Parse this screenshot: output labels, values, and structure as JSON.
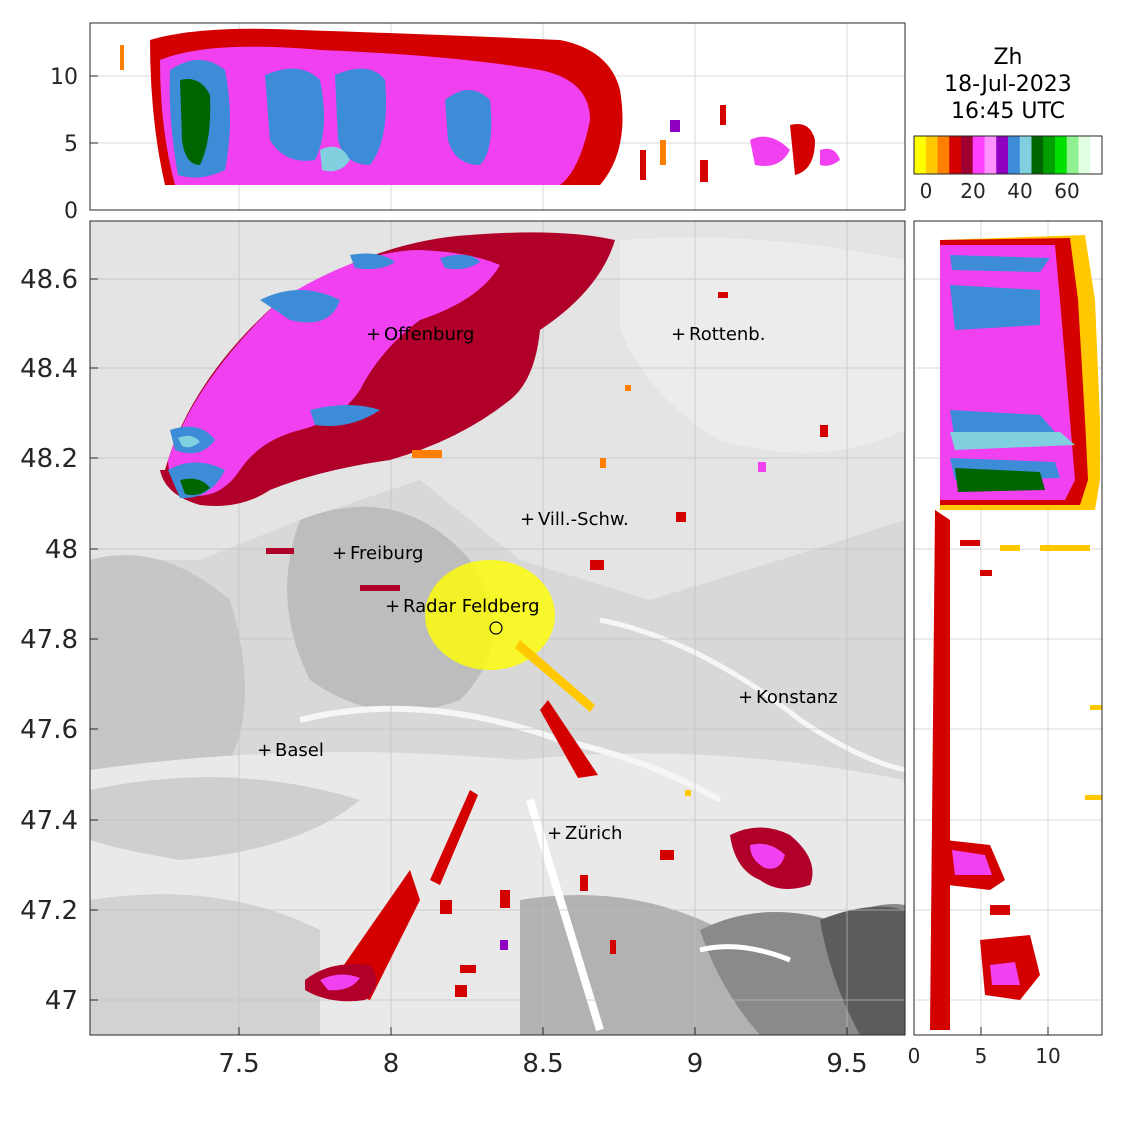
{
  "title": {
    "variable": "Zh",
    "date": "18-Jul-2023",
    "time": "16:45 UTC"
  },
  "colorbar": {
    "tick_labels": [
      "0",
      "20",
      "40",
      "60"
    ],
    "colors": [
      "#ffff00",
      "#ffc800",
      "#ff8000",
      "#d40000",
      "#a00030",
      "#ff40ff",
      "#ff90ff",
      "#9000c0",
      "#3c8cd8",
      "#80d0e0",
      "#006400",
      "#00a000",
      "#00e000",
      "#90f090",
      "#e0ffe0",
      "#ffffff"
    ]
  },
  "map": {
    "lon_ticks": [
      "7.5",
      "8",
      "8.5",
      "9",
      "9.5"
    ],
    "lat_ticks": [
      "48.6",
      "48.4",
      "48.2",
      "48",
      "47.8",
      "47.6",
      "47.4",
      "47.2",
      "47"
    ],
    "cities": [
      {
        "name": "Offenburg",
        "lon": 7.94,
        "lat": 48.47
      },
      {
        "name": "Rottenb.",
        "lon": 8.94,
        "lat": 48.47
      },
      {
        "name": "Vill.-Schw.",
        "lon": 8.45,
        "lat": 48.06
      },
      {
        "name": "Freiburg",
        "lon": 7.83,
        "lat": 47.99
      },
      {
        "name": "Radar Feldberg",
        "lon": 8.01,
        "lat": 47.87
      },
      {
        "name": "Konstanz",
        "lon": 9.17,
        "lat": 47.67
      },
      {
        "name": "Basel",
        "lon": 7.59,
        "lat": 47.55
      },
      {
        "name": "Zürich",
        "lon": 8.54,
        "lat": 47.37
      }
    ],
    "radar_site": {
      "lon": 8.35,
      "lat": 47.82
    }
  },
  "top_section": {
    "y_ticks": [
      "0",
      "5",
      "10"
    ]
  },
  "right_section": {
    "x_ticks": [
      "0",
      "5",
      "10"
    ]
  }
}
